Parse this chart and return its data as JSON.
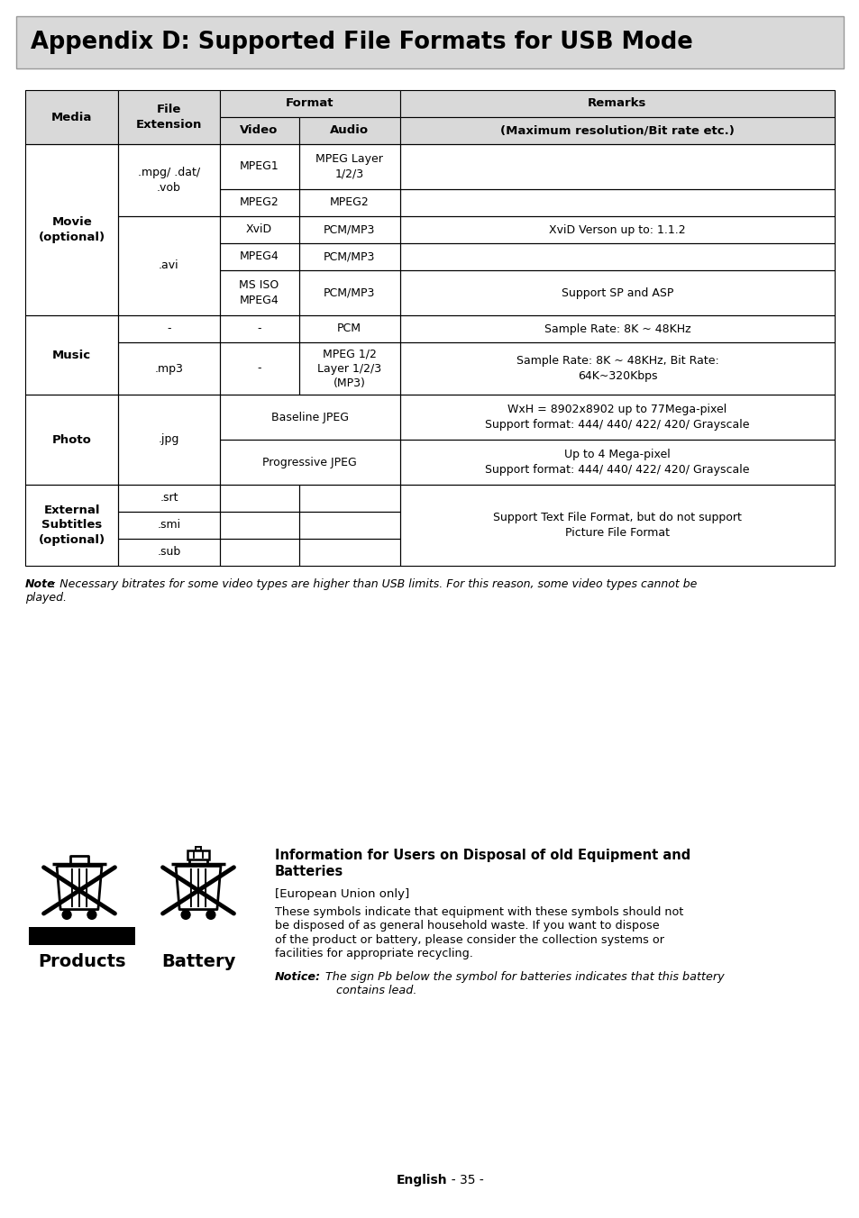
{
  "title": "Appendix D: Supported File Formats for USB Mode",
  "title_bg": "#d9d9d9",
  "page_bg": "#ffffff",
  "table_header_bg": "#d9d9d9",
  "note_line1": "Note: Necessary bitrates for some video types are higher than USB limits. For this reason, some video types cannot be",
  "note_line2": "played.",
  "note_bold": "Note",
  "info_title_line1": "Information for Users on Disposal of old Equipment and",
  "info_title_line2": "Batteries",
  "info_eu": "[European Union only]",
  "info_body_lines": [
    "These symbols indicate that equipment with these symbols should not",
    "be disposed of as general household waste. If you want to dispose",
    "of the product or battery, please consider the collection systems or",
    "facilities for appropriate recycling."
  ],
  "notice_label": "Notice:",
  "notice_line1": "  The sign Pb below the symbol for batteries indicates that this battery",
  "notice_line2": "contains lead.",
  "battery_label": "Battery",
  "products_label": "Products",
  "footer_bold": "English",
  "footer_rest": "  - 35 -"
}
